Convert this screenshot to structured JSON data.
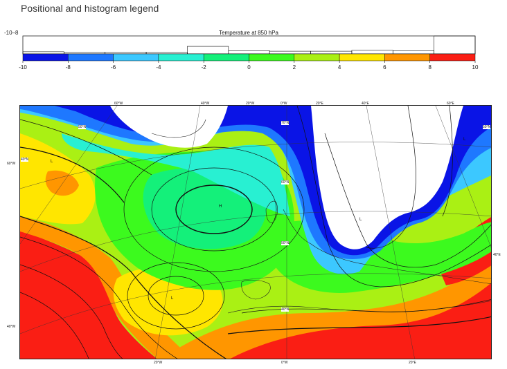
{
  "page": {
    "title": "Positional and histogram legend"
  },
  "legend": {
    "title": "Temperature at 850 hPa",
    "range_label": "-10–8",
    "ticks": [
      "-10",
      "-8",
      "-6",
      "-4",
      "-2",
      "0",
      "2",
      "4",
      "6",
      "8",
      "10"
    ],
    "colors": [
      "#0a14e6",
      "#1e78ff",
      "#3cc8ff",
      "#28f0d2",
      "#14f07a",
      "#3cfa1e",
      "#aaf014",
      "#ffe600",
      "#ff9600",
      "#fa1e14"
    ],
    "histogram": [
      0.12,
      0.1,
      0.1,
      0.1,
      0.42,
      0.18,
      0.15,
      0.15,
      0.2,
      0.18,
      1.0
    ]
  },
  "map": {
    "field": "Temperature at 850 hPa",
    "colors": {
      "deep_cold": "#0a14e6",
      "cold": "#1e78ff",
      "cool": "#3cc8ff",
      "mild_cool": "#28f0d2",
      "mild": "#14f07a",
      "neutral": "#3cfa1e",
      "warm": "#aaf014",
      "warmer": "#ffe600",
      "hot": "#ff9600",
      "very_hot": "#fa1e14"
    },
    "top_lon_labels": [
      "60°W",
      "40°W",
      "20°W",
      "0°W",
      "20°E",
      "40°E",
      "60°E"
    ],
    "bottom_lon_labels": [
      "20°W",
      "0°W",
      "20°E"
    ],
    "left_lat_labels": [
      "60°W",
      "40°W"
    ],
    "right_lat_labels": [
      "40°E"
    ],
    "inner_labels": {
      "lat70_w": "50°N",
      "lat70": "70°N",
      "lat70_e": "50°N",
      "lat60": "60°N",
      "lat50": "50°N",
      "lat40": "40°N",
      "lon40w_left": "40°N"
    },
    "pressure_labels": {
      "high_center": "H",
      "low_mid": "L",
      "low_west": "L",
      "low_europe": "L",
      "low_east": "L"
    }
  }
}
